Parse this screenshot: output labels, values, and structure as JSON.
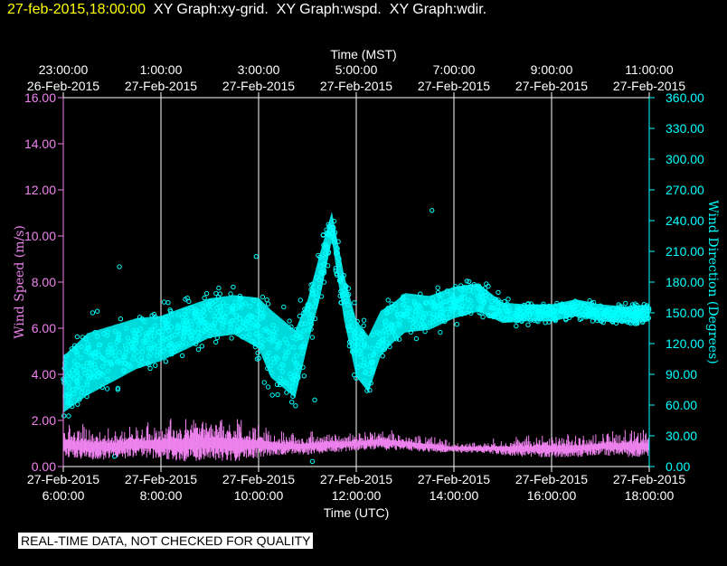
{
  "header": {
    "date": "27-feb-2015,18:00:00",
    "graphs": "XY Graph:xy-grid.  XY Graph:wspd.  XY Graph:wdir."
  },
  "footer": {
    "quality_note": "REAL-TIME DATA, NOT CHECKED FOR QUALITY"
  },
  "chart_data": {
    "type": "scatter",
    "top_axis_title": "Time (MST)",
    "bottom_axis_title": "Time (UTC)",
    "ylabel_left": "Wind Speed (m/s)",
    "ylabel_right": "Wind Direction (Degrees)",
    "x_range_hours_utc": [
      6.0,
      18.0
    ],
    "ylim_left": [
      0,
      16
    ],
    "ylim_right": [
      0,
      360
    ],
    "grid": true,
    "colors": {
      "wind_speed": "#ee82ee",
      "wind_direction": "#00ffff",
      "grid": "#ffffff",
      "left_axis": "#ee82ee",
      "right_axis": "#00ffff"
    },
    "bottom_ticks": [
      {
        "hour": 6,
        "line1": "27-Feb-2015",
        "line2": "6:00:00"
      },
      {
        "hour": 8,
        "line1": "27-Feb-2015",
        "line2": "8:00:00"
      },
      {
        "hour": 10,
        "line1": "27-Feb-2015",
        "line2": "10:00:00"
      },
      {
        "hour": 12,
        "line1": "27-Feb-2015",
        "line2": "12:00:00"
      },
      {
        "hour": 14,
        "line1": "27-Feb-2015",
        "line2": "14:00:00"
      },
      {
        "hour": 16,
        "line1": "27-Feb-2015",
        "line2": "16:00:00"
      },
      {
        "hour": 18,
        "line1": "27-Feb-2015",
        "line2": "18:00:00"
      }
    ],
    "top_ticks": [
      {
        "hour": 6,
        "line1": "23:00:00",
        "line2": "26-Feb-2015"
      },
      {
        "hour": 8,
        "line1": "1:00:00",
        "line2": "27-Feb-2015"
      },
      {
        "hour": 10,
        "line1": "3:00:00",
        "line2": "27-Feb-2015"
      },
      {
        "hour": 12,
        "line1": "5:00:00",
        "line2": "27-Feb-2015"
      },
      {
        "hour": 14,
        "line1": "7:00:00",
        "line2": "27-Feb-2015"
      },
      {
        "hour": 16,
        "line1": "9:00:00",
        "line2": "27-Feb-2015"
      },
      {
        "hour": 18,
        "line1": "11:00:00",
        "line2": "27-Feb-2015"
      }
    ],
    "left_ticks": [
      "0.00",
      "2.00",
      "4.00",
      "6.00",
      "8.00",
      "10.00",
      "12.00",
      "14.00",
      "16.00"
    ],
    "right_ticks": [
      "0.00",
      "30.00",
      "60.00",
      "90.00",
      "120.00",
      "150.00",
      "180.00",
      "210.00",
      "240.00",
      "270.00",
      "300.00",
      "330.00",
      "360.00"
    ],
    "series": [
      {
        "name": "Wind Speed (m/s)",
        "axis": "left",
        "hour": [
          6.0,
          6.5,
          7.0,
          7.5,
          8.0,
          8.5,
          9.0,
          9.5,
          10.0,
          10.5,
          11.0,
          11.5,
          12.0,
          12.5,
          13.0,
          13.5,
          14.0,
          14.5,
          15.0,
          15.5,
          16.0,
          16.5,
          17.0,
          17.5,
          18.0
        ],
        "center": [
          1.0,
          0.9,
          0.9,
          1.0,
          1.0,
          1.0,
          1.1,
          1.0,
          1.0,
          0.9,
          0.9,
          1.0,
          1.0,
          1.1,
          1.0,
          0.9,
          0.8,
          0.8,
          0.8,
          0.8,
          0.8,
          0.8,
          0.9,
          0.9,
          0.9
        ],
        "spread": [
          0.6,
          0.6,
          0.6,
          0.6,
          0.7,
          0.8,
          0.8,
          0.8,
          0.6,
          0.4,
          0.4,
          0.4,
          0.3,
          0.4,
          0.3,
          0.3,
          0.2,
          0.2,
          0.3,
          0.4,
          0.4,
          0.4,
          0.4,
          0.5,
          0.5
        ]
      },
      {
        "name": "Wind Direction (Degrees)",
        "axis": "right",
        "hour": [
          6.0,
          6.5,
          7.0,
          7.5,
          8.0,
          8.5,
          9.0,
          9.5,
          10.0,
          10.25,
          10.5,
          10.75,
          11.0,
          11.25,
          11.5,
          11.75,
          12.0,
          12.25,
          12.5,
          12.75,
          13.0,
          13.5,
          14.0,
          14.5,
          15.0,
          15.5,
          16.0,
          16.5,
          17.0,
          17.5,
          18.0
        ],
        "center": [
          80,
          100,
          110,
          120,
          125,
          135,
          145,
          148,
          140,
          120,
          110,
          100,
          140,
          185,
          235,
          165,
          115,
          100,
          130,
          140,
          150,
          150,
          160,
          165,
          150,
          150,
          150,
          155,
          150,
          148,
          150
        ],
        "spread": [
          50,
          55,
          50,
          45,
          40,
          38,
          35,
          35,
          45,
          60,
          60,
          60,
          40,
          40,
          25,
          40,
          50,
          50,
          40,
          35,
          35,
          30,
          28,
          25,
          18,
          15,
          15,
          15,
          15,
          15,
          15
        ],
        "outliers": [
          {
            "hour": 6.6,
            "value": 150
          },
          {
            "hour": 7.15,
            "value": 195
          },
          {
            "hour": 9.95,
            "value": 205
          },
          {
            "hour": 11.15,
            "value": 65
          },
          {
            "hour": 11.1,
            "value": 5
          },
          {
            "hour": 13.55,
            "value": 250
          },
          {
            "hour": 7.05,
            "value": 10
          }
        ]
      }
    ]
  }
}
